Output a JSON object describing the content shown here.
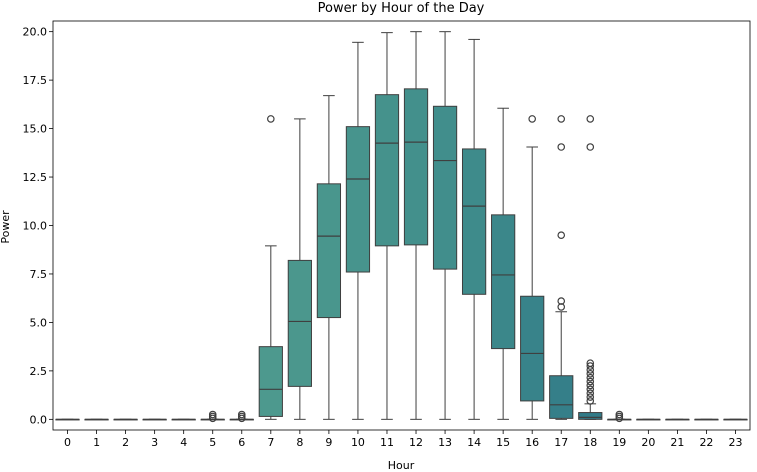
{
  "chart_data": {
    "type": "box",
    "title": "Power by Hour of the Day",
    "xlabel": "Hour",
    "ylabel": "Power",
    "ylim": [
      -0.55,
      20.55
    ],
    "yticks": [
      "0.0",
      "2.5",
      "5.0",
      "7.5",
      "10.0",
      "12.5",
      "15.0",
      "17.5",
      "20.0"
    ],
    "categories": [
      "0",
      "1",
      "2",
      "3",
      "4",
      "5",
      "6",
      "7",
      "8",
      "9",
      "10",
      "11",
      "12",
      "13",
      "14",
      "15",
      "16",
      "17",
      "18",
      "19",
      "20",
      "21",
      "22",
      "23"
    ],
    "boxes": [
      {
        "hour": "0",
        "color": "#5aa08e",
        "low": 0,
        "q1": 0,
        "median": 0,
        "q3": 0,
        "high": 0,
        "outliers": []
      },
      {
        "hour": "1",
        "color": "#58a08e",
        "low": 0,
        "q1": 0,
        "median": 0,
        "q3": 0,
        "high": 0,
        "outliers": []
      },
      {
        "hour": "2",
        "color": "#569e8e",
        "low": 0,
        "q1": 0,
        "median": 0,
        "q3": 0,
        "high": 0,
        "outliers": []
      },
      {
        "hour": "3",
        "color": "#549d8e",
        "low": 0,
        "q1": 0,
        "median": 0,
        "q3": 0,
        "high": 0,
        "outliers": []
      },
      {
        "hour": "4",
        "color": "#529c8e",
        "low": 0,
        "q1": 0,
        "median": 0,
        "q3": 0,
        "high": 0,
        "outliers": []
      },
      {
        "hour": "5",
        "color": "#509b8e",
        "low": 0,
        "q1": 0,
        "median": 0,
        "q3": 0,
        "high": 0,
        "outliers": [
          0.05,
          0.15,
          0.25
        ]
      },
      {
        "hour": "6",
        "color": "#4e9a8e",
        "low": 0,
        "q1": 0,
        "median": 0,
        "q3": 0,
        "high": 0,
        "outliers": [
          0.05,
          0.15,
          0.25
        ]
      },
      {
        "hour": "7",
        "color": "#4d998e",
        "low": 0,
        "q1": 0.15,
        "median": 1.55,
        "q3": 3.75,
        "high": 8.95,
        "outliers": [
          15.5
        ]
      },
      {
        "hour": "8",
        "color": "#4b978d",
        "low": 0,
        "q1": 1.7,
        "median": 5.05,
        "q3": 8.2,
        "high": 15.5,
        "outliers": []
      },
      {
        "hour": "9",
        "color": "#49968d",
        "low": 0,
        "q1": 5.25,
        "median": 9.45,
        "q3": 12.15,
        "high": 16.7,
        "outliers": []
      },
      {
        "hour": "10",
        "color": "#47948d",
        "low": 0,
        "q1": 7.6,
        "median": 12.4,
        "q3": 15.1,
        "high": 19.45,
        "outliers": []
      },
      {
        "hour": "11",
        "color": "#45928c",
        "low": 0,
        "q1": 8.95,
        "median": 14.25,
        "q3": 16.75,
        "high": 19.95,
        "outliers": []
      },
      {
        "hour": "12",
        "color": "#43908c",
        "low": 0,
        "q1": 9.0,
        "median": 14.3,
        "q3": 17.05,
        "high": 20.0,
        "outliers": []
      },
      {
        "hour": "13",
        "color": "#418e8c",
        "low": 0,
        "q1": 7.75,
        "median": 13.35,
        "q3": 16.15,
        "high": 20.0,
        "outliers": []
      },
      {
        "hour": "14",
        "color": "#3e8b8b",
        "low": 0,
        "q1": 6.45,
        "median": 11.0,
        "q3": 13.95,
        "high": 19.6,
        "outliers": []
      },
      {
        "hour": "15",
        "color": "#3b878a",
        "low": 0,
        "q1": 3.65,
        "median": 7.45,
        "q3": 10.55,
        "high": 16.05,
        "outliers": []
      },
      {
        "hour": "16",
        "color": "#38838a",
        "low": 0,
        "q1": 0.95,
        "median": 3.4,
        "q3": 6.35,
        "high": 14.05,
        "outliers": [
          15.5
        ]
      },
      {
        "hour": "17",
        "color": "#357f89",
        "low": 0,
        "q1": 0.05,
        "median": 0.75,
        "q3": 2.25,
        "high": 5.55,
        "outliers": [
          5.8,
          6.1,
          9.5,
          14.05,
          15.5
        ]
      },
      {
        "hour": "18",
        "color": "#327b88",
        "low": 0,
        "q1": 0,
        "median": 0.1,
        "q3": 0.35,
        "high": 0.8,
        "outliers": [
          0.95,
          1.15,
          1.35,
          1.55,
          1.75,
          1.95,
          2.15,
          2.35,
          2.55,
          2.75,
          2.9,
          14.05,
          15.5
        ]
      },
      {
        "hour": "19",
        "color": "#2f7787",
        "low": 0,
        "q1": 0,
        "median": 0,
        "q3": 0,
        "high": 0,
        "outliers": [
          0.05,
          0.15,
          0.25
        ]
      },
      {
        "hour": "20",
        "color": "#2d7486",
        "low": 0,
        "q1": 0,
        "median": 0,
        "q3": 0,
        "high": 0,
        "outliers": []
      },
      {
        "hour": "21",
        "color": "#2b7186",
        "low": 0,
        "q1": 0,
        "median": 0,
        "q3": 0,
        "high": 0,
        "outliers": []
      },
      {
        "hour": "22",
        "color": "#296e85",
        "low": 0,
        "q1": 0,
        "median": 0,
        "q3": 0,
        "high": 0,
        "outliers": []
      },
      {
        "hour": "23",
        "color": "#276b85",
        "low": 0,
        "q1": 0,
        "median": 0,
        "q3": 0,
        "high": 0,
        "outliers": []
      }
    ],
    "grid": false,
    "legend": "none"
  }
}
